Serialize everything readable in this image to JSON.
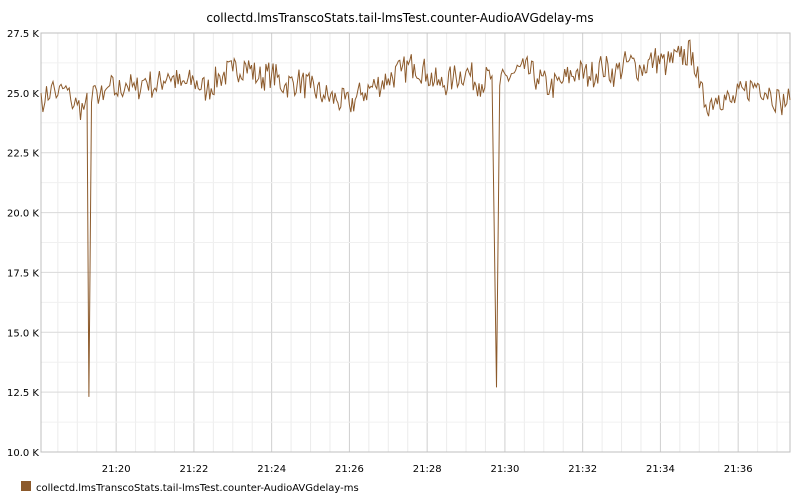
{
  "chart_data": {
    "type": "line",
    "title": "collectd.lmsTranscoStats.tail-lmsTest.counter-AudioAVGdelay-ms",
    "xlabel": "",
    "ylabel": "",
    "x_range": [
      "21:18:04",
      "21:37:20"
    ],
    "ylim": [
      10000,
      27500
    ],
    "y_ticks": [
      10000,
      12500,
      15000,
      17500,
      20000,
      22500,
      25000,
      27500
    ],
    "y_tick_labels": [
      "10.0 K",
      "12.5 K",
      "15.0 K",
      "17.5 K",
      "20.0 K",
      "22.5 K",
      "25.0 K",
      "27.5 K"
    ],
    "x_ticks": [
      "21:20",
      "21:22",
      "21:24",
      "21:26",
      "21:28",
      "21:30",
      "21:32",
      "21:34",
      "21:36"
    ],
    "grid": true,
    "legend_position": "bottom-left",
    "series": [
      {
        "name": "collectd.lmsTranscoStats.tail-lmsTest.counter-AudioAVGdelay-ms",
        "color": "#8c5a2b",
        "points": [
          [
            "21:18:04",
            25000
          ],
          [
            "21:18:10",
            24600
          ],
          [
            "21:18:20",
            25300
          ],
          [
            "21:18:30",
            24900
          ],
          [
            "21:18:40",
            25200
          ],
          [
            "21:18:50",
            24700
          ],
          [
            "21:19:00",
            24500
          ],
          [
            "21:19:10",
            24300
          ],
          [
            "21:19:15",
            25000
          ],
          [
            "21:19:18",
            12300
          ],
          [
            "21:19:22",
            24600
          ],
          [
            "21:19:30",
            25100
          ],
          [
            "21:19:40",
            24700
          ],
          [
            "21:19:50",
            25300
          ],
          [
            "21:20:00",
            25000
          ],
          [
            "21:20:15",
            25400
          ],
          [
            "21:20:30",
            25100
          ],
          [
            "21:20:45",
            25600
          ],
          [
            "21:21:00",
            25200
          ],
          [
            "21:21:20",
            25800
          ],
          [
            "21:21:40",
            25300
          ],
          [
            "21:22:00",
            25500
          ],
          [
            "21:22:20",
            25100
          ],
          [
            "21:22:40",
            25700
          ],
          [
            "21:23:00",
            25900
          ],
          [
            "21:23:20",
            26200
          ],
          [
            "21:23:40",
            25600
          ],
          [
            "21:24:00",
            25800
          ],
          [
            "21:24:20",
            25300
          ],
          [
            "21:24:40",
            25500
          ],
          [
            "21:25:00",
            25200
          ],
          [
            "21:25:20",
            24900
          ],
          [
            "21:25:40",
            24700
          ],
          [
            "21:26:00",
            24500
          ],
          [
            "21:26:20",
            25000
          ],
          [
            "21:26:40",
            25300
          ],
          [
            "21:27:00",
            25600
          ],
          [
            "21:27:20",
            25900
          ],
          [
            "21:27:40",
            26200
          ],
          [
            "21:28:00",
            25800
          ],
          [
            "21:28:20",
            25300
          ],
          [
            "21:28:40",
            25600
          ],
          [
            "21:29:00",
            25900
          ],
          [
            "21:29:20",
            25400
          ],
          [
            "21:29:40",
            25700
          ],
          [
            "21:29:47",
            12700
          ],
          [
            "21:29:52",
            25300
          ],
          [
            "21:30:10",
            25800
          ],
          [
            "21:30:30",
            26000
          ],
          [
            "21:30:50",
            25600
          ],
          [
            "21:31:10",
            25200
          ],
          [
            "21:31:30",
            25500
          ],
          [
            "21:31:50",
            25900
          ],
          [
            "21:32:10",
            25700
          ],
          [
            "21:32:30",
            26100
          ],
          [
            "21:32:50",
            25800
          ],
          [
            "21:33:10",
            26300
          ],
          [
            "21:33:30",
            26000
          ],
          [
            "21:33:50",
            26400
          ],
          [
            "21:34:10",
            26200
          ],
          [
            "21:34:30",
            26500
          ],
          [
            "21:34:50",
            26700
          ],
          [
            "21:35:00",
            25200
          ],
          [
            "21:35:10",
            24500
          ],
          [
            "21:35:30",
            24900
          ],
          [
            "21:35:50",
            24600
          ],
          [
            "21:36:10",
            25100
          ],
          [
            "21:36:30",
            25400
          ],
          [
            "21:36:50",
            25000
          ],
          [
            "21:37:05",
            24600
          ],
          [
            "21:37:20",
            24700
          ]
        ]
      }
    ]
  }
}
